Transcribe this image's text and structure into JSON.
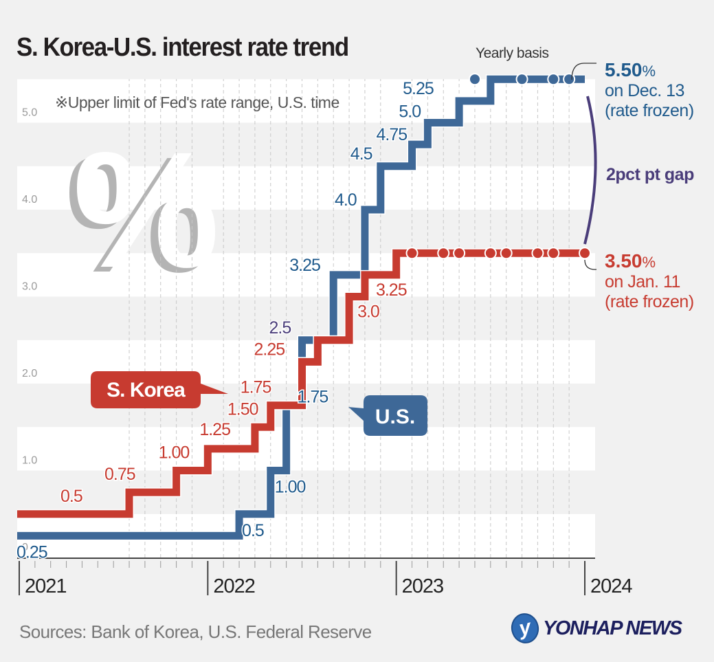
{
  "title": "S. Korea-U.S. interest rate trend",
  "subtitle": "Yearly basis",
  "note": "※Upper limit of Fed's rate range, U.S. time",
  "annotations": {
    "us_rate": "5.50",
    "us_rate_unit": "%",
    "us_date": "on Dec. 13",
    "us_status": "(rate frozen)",
    "kr_rate": "3.50",
    "kr_rate_unit": "%",
    "kr_date": "on Jan. 11",
    "kr_status": "(rate frozen)",
    "gap": "2pct pt gap"
  },
  "source": "Sources: Bank of Korea, U.S. Federal Reserve",
  "logo": {
    "mark": "y",
    "text": "YONHAP NEWS"
  },
  "colors": {
    "korea": "#c73b30",
    "us": "#3e6897",
    "us_label": "#1f5a8c",
    "gap": "#4a3d7a",
    "axis_label": "#999999",
    "band": "#ffffff",
    "background": "#f1f1f1"
  },
  "chart_data": {
    "type": "line",
    "step": true,
    "title": "S. Korea-U.S. interest rate trend",
    "xlabel": "",
    "ylabel": "%",
    "ylim": [
      0,
      5.5
    ],
    "yticks": [
      "0",
      "1.0",
      "2.0",
      "3.0",
      "4.0",
      "5.0"
    ],
    "xticks": [
      "2021",
      "2022",
      "2023",
      "2024"
    ],
    "xunit": "months since Jan 2021",
    "xlim": [
      0,
      36
    ],
    "series": [
      {
        "name": "S. Korea",
        "color": "#c73b30",
        "points": [
          {
            "x": 0,
            "y": 0.5,
            "label": "0.5"
          },
          {
            "x": 7,
            "y": 0.75,
            "label": "0.75"
          },
          {
            "x": 10,
            "y": 1.0,
            "label": "1.00"
          },
          {
            "x": 12,
            "y": 1.25,
            "label": "1.25"
          },
          {
            "x": 15,
            "y": 1.5,
            "label": "1.50"
          },
          {
            "x": 16,
            "y": 1.75,
            "label": "1.75"
          },
          {
            "x": 18,
            "y": 2.25,
            "label": "2.25"
          },
          {
            "x": 19,
            "y": 2.5,
            "label": ""
          },
          {
            "x": 21,
            "y": 3.0,
            "label": "3.0"
          },
          {
            "x": 22,
            "y": 3.25,
            "label": "3.25"
          },
          {
            "x": 24,
            "y": 3.5,
            "label": ""
          }
        ],
        "end_x": 36,
        "freeze_dots": [
          25,
          27,
          28,
          30,
          31,
          33,
          34,
          36
        ]
      },
      {
        "name": "U.S.",
        "color": "#3e6897",
        "points": [
          {
            "x": 0,
            "y": 0.25,
            "label": "0.25"
          },
          {
            "x": 14,
            "y": 0.5,
            "label": "0.5"
          },
          {
            "x": 16,
            "y": 1.0,
            "label": "1.00"
          },
          {
            "x": 17,
            "y": 1.75,
            "label": "1.75"
          },
          {
            "x": 18,
            "y": 2.5,
            "label": "2.5"
          },
          {
            "x": 20,
            "y": 3.25,
            "label": "3.25"
          },
          {
            "x": 22,
            "y": 4.0,
            "label": "4.0"
          },
          {
            "x": 23,
            "y": 4.5,
            "label": "4.5"
          },
          {
            "x": 25,
            "y": 4.75,
            "label": "4.75"
          },
          {
            "x": 26,
            "y": 5.0,
            "label": "5.0"
          },
          {
            "x": 28,
            "y": 5.25,
            "label": "5.25"
          },
          {
            "x": 30,
            "y": 5.5,
            "label": ""
          }
        ],
        "end_x": 36,
        "freeze_dots": [
          29,
          32,
          34,
          35
        ]
      }
    ],
    "legend": [
      {
        "name": "S. Korea",
        "placement": "middle-left"
      },
      {
        "name": "U.S.",
        "placement": "center"
      }
    ]
  }
}
